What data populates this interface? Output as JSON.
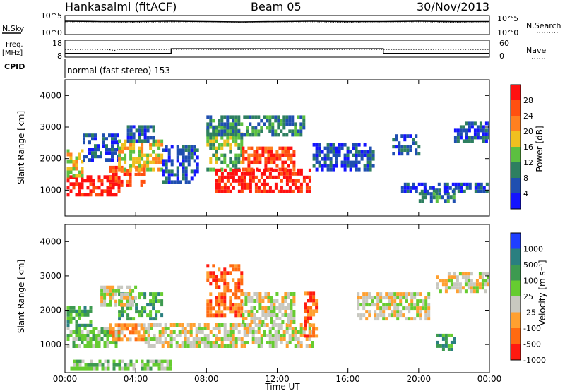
{
  "header": {
    "station": "Hankasalmi (fitACF)",
    "beam": "Beam 05",
    "date": "30/Nov/2013"
  },
  "nsky_panel": {
    "left_label": "N.Sky",
    "left_ticks": [
      "10^5",
      "10^0"
    ],
    "right_label": "N.Search",
    "right_ticks": [
      "10^5",
      "10^0"
    ]
  },
  "freq_panel": {
    "left_label_1": "Freq.",
    "left_label_2": "[MHz]",
    "left_ticks": [
      "18",
      "8"
    ],
    "right_label": "Nave",
    "right_ticks": [
      "60",
      "0"
    ]
  },
  "cpid": {
    "label": "CPID",
    "text": "normal (fast stereo) 153"
  },
  "time_axis": {
    "title": "Time UT",
    "ticks": [
      "00:00",
      "04:00",
      "08:00",
      "12:00",
      "16:00",
      "20:00",
      "00:00"
    ]
  },
  "chart_data": [
    {
      "type": "line",
      "name": "nsky-nsearch",
      "x_range_hours": [
        0,
        24
      ],
      "x": [
        0,
        2,
        4,
        6,
        8,
        10,
        12,
        14,
        16,
        18,
        20,
        22,
        24
      ],
      "series": [
        {
          "values": [
            3.6,
            3.5,
            3.5,
            3.6,
            3.5,
            3.4,
            3.5,
            3.6,
            3.5,
            3.5,
            3.6,
            3.5,
            3.5
          ]
        },
        {
          "values": [
            3.4,
            3.4,
            3.3,
            3.4,
            3.4,
            3.3,
            3.4,
            3.4,
            3.3,
            3.4,
            3.4,
            3.3,
            3.4
          ]
        }
      ],
      "ylim": [
        0,
        5
      ],
      "scale": "log"
    },
    {
      "type": "line",
      "name": "frequency-nave",
      "x_range_hours": [
        0,
        24
      ],
      "frequency_ylim": [
        8,
        18
      ],
      "nave_ylim": [
        0,
        60
      ],
      "frequency": {
        "x": [
          0,
          2.4,
          2.8,
          2.9,
          3.0,
          24
        ],
        "values": [
          12.5,
          12.5,
          11.8,
          12.3,
          12.5,
          12.5
        ]
      },
      "nave": {
        "x": [
          0,
          6,
          6,
          18,
          18,
          24
        ],
        "values": [
          12,
          12,
          30,
          30,
          12,
          12
        ]
      }
    },
    {
      "type": "heatmap",
      "name": "power",
      "ylabel": "Slant Range [km]",
      "colorbar_label": "Power [dB]",
      "x_range_hours": [
        0,
        24
      ],
      "ylim": [
        180,
        4500
      ],
      "yticks": [
        1000,
        2000,
        3000,
        4000
      ],
      "colorbar_ticks": [
        "28",
        "24",
        "20",
        "16",
        "12",
        "8",
        "4"
      ],
      "colors": [
        "#1414ff",
        "#1f4fb0",
        "#2e7f60",
        "#5cc040",
        "#f0c020",
        "#ff8020",
        "#ff5010",
        "#ff1010"
      ],
      "regions": [
        {
          "t0": 0.1,
          "t1": 3.0,
          "r0": 800,
          "r1": 1400,
          "level": 7
        },
        {
          "t0": 0.1,
          "t1": 1.0,
          "r0": 1400,
          "r1": 2200,
          "level": 4
        },
        {
          "t0": 1.0,
          "t1": 3.0,
          "r0": 1900,
          "r1": 2700,
          "level": 1
        },
        {
          "t0": 2.5,
          "t1": 4.5,
          "r0": 1100,
          "r1": 1700,
          "level": 6
        },
        {
          "t0": 3.0,
          "t1": 5.5,
          "r0": 1600,
          "r1": 2500,
          "level": 4
        },
        {
          "t0": 3.5,
          "t1": 5.0,
          "r0": 2500,
          "r1": 3000,
          "level": 1
        },
        {
          "t0": 5.5,
          "t1": 7.5,
          "r0": 1200,
          "r1": 2400,
          "level": 1
        },
        {
          "t0": 8.0,
          "t1": 10.0,
          "r0": 1600,
          "r1": 3000,
          "level": 3
        },
        {
          "t0": 8.5,
          "t1": 13.8,
          "r0": 900,
          "r1": 1600,
          "level": 7
        },
        {
          "t0": 10.0,
          "t1": 13.0,
          "r0": 1600,
          "r1": 2300,
          "level": 6
        },
        {
          "t0": 8.0,
          "t1": 13.5,
          "r0": 2700,
          "r1": 3300,
          "level": 2
        },
        {
          "t0": 14.0,
          "t1": 17.5,
          "r0": 1600,
          "r1": 2400,
          "level": 1
        },
        {
          "t0": 18.5,
          "t1": 20.0,
          "r0": 2100,
          "r1": 2700,
          "level": 1
        },
        {
          "t0": 20.0,
          "t1": 22.0,
          "r0": 600,
          "r1": 1000,
          "level": 2
        },
        {
          "t0": 22.0,
          "t1": 24.0,
          "r0": 2500,
          "r1": 3100,
          "level": 1
        },
        {
          "t0": 19.0,
          "t1": 24.0,
          "r0": 900,
          "r1": 1200,
          "level": 1
        }
      ]
    },
    {
      "type": "heatmap",
      "name": "velocity",
      "ylabel": "Slant Range [km]",
      "colorbar_label": "Velocity [m s⁻¹]",
      "x_range_hours": [
        0,
        24
      ],
      "ylim": [
        180,
        4500
      ],
      "yticks": [
        1000,
        2000,
        3000,
        4000
      ],
      "colorbar_ticks": [
        "1000",
        "500",
        "100",
        "25",
        "-25",
        "-100",
        "-500",
        "-1000"
      ],
      "colors": [
        "#1f3fff",
        "#2a7f80",
        "#3d9a50",
        "#66cc30",
        "#c8c8c0",
        "#ffa030",
        "#ff6a10",
        "#ff1a10"
      ],
      "regions": [
        {
          "t0": 0.1,
          "t1": 3.0,
          "r0": 900,
          "r1": 1500,
          "level": 3
        },
        {
          "t0": 0.1,
          "t1": 1.5,
          "r0": 1500,
          "r1": 2100,
          "level": 2
        },
        {
          "t0": 2.5,
          "t1": 4.5,
          "r0": 1100,
          "r1": 1600,
          "level": 5
        },
        {
          "t0": 3.0,
          "t1": 5.5,
          "r0": 1700,
          "r1": 2500,
          "level": 2
        },
        {
          "t0": 4.5,
          "t1": 14.0,
          "r0": 900,
          "r1": 1600,
          "level": 4
        },
        {
          "t0": 8.0,
          "t1": 10.0,
          "r0": 1800,
          "r1": 3300,
          "level": 6
        },
        {
          "t0": 10.0,
          "t1": 13.0,
          "r0": 1600,
          "r1": 2500,
          "level": 4
        },
        {
          "t0": 13.5,
          "t1": 14.2,
          "r0": 1200,
          "r1": 2500,
          "level": 6
        },
        {
          "t0": 2.0,
          "t1": 4.0,
          "r0": 2100,
          "r1": 2700,
          "level": 4
        },
        {
          "t0": 16.5,
          "t1": 20.5,
          "r0": 1700,
          "r1": 2500,
          "level": 4
        },
        {
          "t0": 21.0,
          "t1": 24.0,
          "r0": 2500,
          "r1": 3100,
          "level": 4
        },
        {
          "t0": 21.0,
          "t1": 22.0,
          "r0": 800,
          "r1": 1300,
          "level": 2
        },
        {
          "t0": 0.3,
          "t1": 6.0,
          "r0": 250,
          "r1": 500,
          "level": 3
        }
      ]
    }
  ]
}
